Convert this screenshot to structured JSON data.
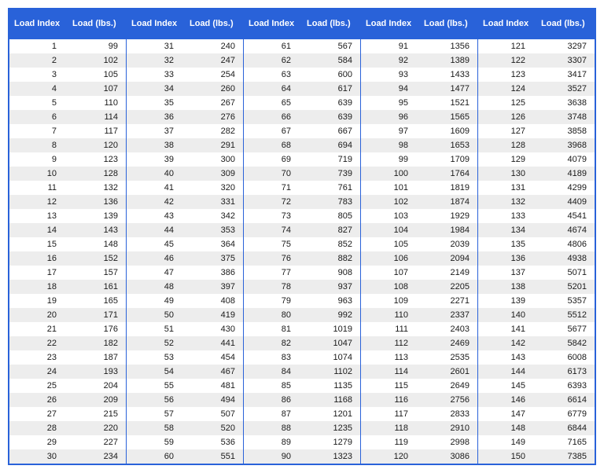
{
  "table": {
    "type": "table",
    "header_bg": "#2962d9",
    "header_text_color": "#ffffff",
    "border_color": "#2962d9",
    "row_even_bg": "#ffffff",
    "row_odd_bg": "#ededed",
    "text_color": "#1a1a1a",
    "header_fontsize": 11,
    "cell_fontsize": 11,
    "columns_per_group": 2,
    "groups": 5,
    "rows_per_group": 30,
    "headers": {
      "index_label": "Load Index",
      "load_label": "Load (lbs.)"
    },
    "data": [
      [
        [
          1,
          99
        ],
        [
          2,
          102
        ],
        [
          3,
          105
        ],
        [
          4,
          107
        ],
        [
          5,
          110
        ],
        [
          6,
          114
        ],
        [
          7,
          117
        ],
        [
          8,
          120
        ],
        [
          9,
          123
        ],
        [
          10,
          128
        ],
        [
          11,
          132
        ],
        [
          12,
          136
        ],
        [
          13,
          139
        ],
        [
          14,
          143
        ],
        [
          15,
          148
        ],
        [
          16,
          152
        ],
        [
          17,
          157
        ],
        [
          18,
          161
        ],
        [
          19,
          165
        ],
        [
          20,
          171
        ],
        [
          21,
          176
        ],
        [
          22,
          182
        ],
        [
          23,
          187
        ],
        [
          24,
          193
        ],
        [
          25,
          204
        ],
        [
          26,
          209
        ],
        [
          27,
          215
        ],
        [
          28,
          220
        ],
        [
          29,
          227
        ],
        [
          30,
          234
        ]
      ],
      [
        [
          31,
          240
        ],
        [
          32,
          247
        ],
        [
          33,
          254
        ],
        [
          34,
          260
        ],
        [
          35,
          267
        ],
        [
          36,
          276
        ],
        [
          37,
          282
        ],
        [
          38,
          291
        ],
        [
          39,
          300
        ],
        [
          40,
          309
        ],
        [
          41,
          320
        ],
        [
          42,
          331
        ],
        [
          43,
          342
        ],
        [
          44,
          353
        ],
        [
          45,
          364
        ],
        [
          46,
          375
        ],
        [
          47,
          386
        ],
        [
          48,
          397
        ],
        [
          49,
          408
        ],
        [
          50,
          419
        ],
        [
          51,
          430
        ],
        [
          52,
          441
        ],
        [
          53,
          454
        ],
        [
          54,
          467
        ],
        [
          55,
          481
        ],
        [
          56,
          494
        ],
        [
          57,
          507
        ],
        [
          58,
          520
        ],
        [
          59,
          536
        ],
        [
          60,
          551
        ]
      ],
      [
        [
          61,
          567
        ],
        [
          62,
          584
        ],
        [
          63,
          600
        ],
        [
          64,
          617
        ],
        [
          65,
          639
        ],
        [
          66,
          639
        ],
        [
          67,
          667
        ],
        [
          68,
          694
        ],
        [
          69,
          719
        ],
        [
          70,
          739
        ],
        [
          71,
          761
        ],
        [
          72,
          783
        ],
        [
          73,
          805
        ],
        [
          74,
          827
        ],
        [
          75,
          852
        ],
        [
          76,
          882
        ],
        [
          77,
          908
        ],
        [
          78,
          937
        ],
        [
          79,
          963
        ],
        [
          80,
          992
        ],
        [
          81,
          1019
        ],
        [
          82,
          1047
        ],
        [
          83,
          1074
        ],
        [
          84,
          1102
        ],
        [
          85,
          1135
        ],
        [
          86,
          1168
        ],
        [
          87,
          1201
        ],
        [
          88,
          1235
        ],
        [
          89,
          1279
        ],
        [
          90,
          1323
        ]
      ],
      [
        [
          91,
          1356
        ],
        [
          92,
          1389
        ],
        [
          93,
          1433
        ],
        [
          94,
          1477
        ],
        [
          95,
          1521
        ],
        [
          96,
          1565
        ],
        [
          97,
          1609
        ],
        [
          98,
          1653
        ],
        [
          99,
          1709
        ],
        [
          100,
          1764
        ],
        [
          101,
          1819
        ],
        [
          102,
          1874
        ],
        [
          103,
          1929
        ],
        [
          104,
          1984
        ],
        [
          105,
          2039
        ],
        [
          106,
          2094
        ],
        [
          107,
          2149
        ],
        [
          108,
          2205
        ],
        [
          109,
          2271
        ],
        [
          110,
          2337
        ],
        [
          111,
          2403
        ],
        [
          112,
          2469
        ],
        [
          113,
          2535
        ],
        [
          114,
          2601
        ],
        [
          115,
          2649
        ],
        [
          116,
          2756
        ],
        [
          117,
          2833
        ],
        [
          118,
          2910
        ],
        [
          119,
          2998
        ],
        [
          120,
          3086
        ]
      ],
      [
        [
          121,
          3297
        ],
        [
          122,
          3307
        ],
        [
          123,
          3417
        ],
        [
          124,
          3527
        ],
        [
          125,
          3638
        ],
        [
          126,
          3748
        ],
        [
          127,
          3858
        ],
        [
          128,
          3968
        ],
        [
          129,
          4079
        ],
        [
          130,
          4189
        ],
        [
          131,
          4299
        ],
        [
          132,
          4409
        ],
        [
          133,
          4541
        ],
        [
          134,
          4674
        ],
        [
          135,
          4806
        ],
        [
          136,
          4938
        ],
        [
          137,
          5071
        ],
        [
          138,
          5201
        ],
        [
          139,
          5357
        ],
        [
          140,
          5512
        ],
        [
          141,
          5677
        ],
        [
          142,
          5842
        ],
        [
          143,
          6008
        ],
        [
          144,
          6173
        ],
        [
          145,
          6393
        ],
        [
          146,
          6614
        ],
        [
          147,
          6779
        ],
        [
          148,
          6844
        ],
        [
          149,
          7165
        ],
        [
          150,
          7385
        ]
      ]
    ]
  }
}
